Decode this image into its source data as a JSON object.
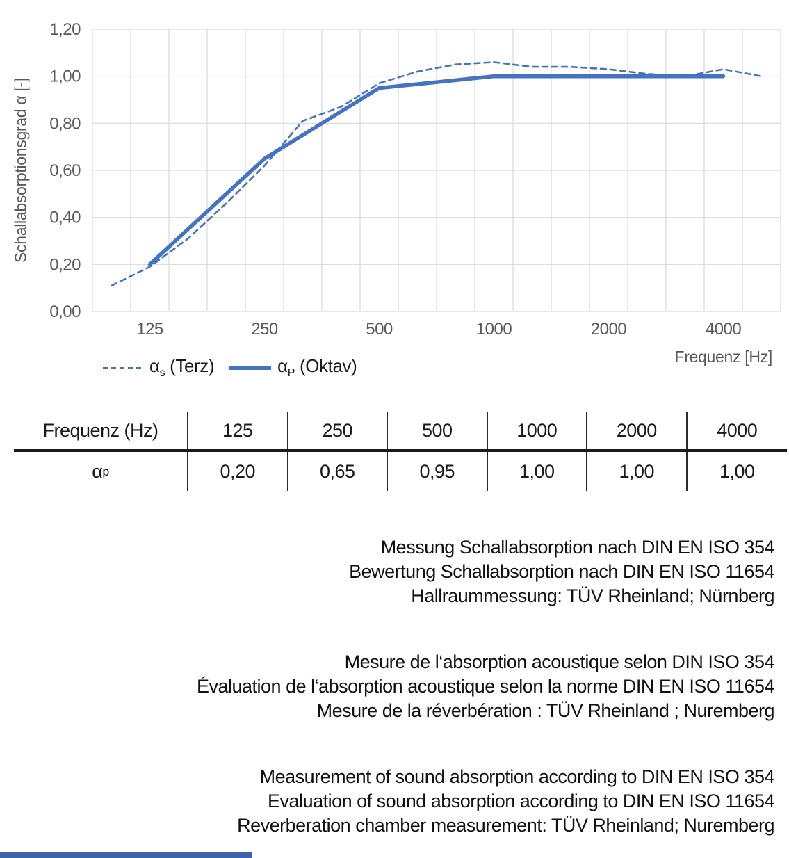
{
  "chart": {
    "y_axis": {
      "title": "Schallabsorptionsgrad α [-]",
      "tick_labels": [
        "0,00",
        "0,20",
        "0,40",
        "0,60",
        "0,80",
        "1,00",
        "1,20"
      ],
      "step": 0.2
    },
    "x_axis": {
      "title": "Frequenz [Hz]",
      "tick_labels": [
        "125",
        "250",
        "500",
        "1000",
        "2000",
        "4000"
      ]
    },
    "legend": [
      {
        "symbol": "α",
        "sub": "s",
        "text": " (Terz)"
      },
      {
        "symbol": "α",
        "sub": "P",
        "text": " (Oktav)"
      }
    ],
    "colors": {
      "line": "#4472C4",
      "grid": "#D9D9D9",
      "tick_text": "#595959"
    }
  },
  "chart_data": {
    "type": "line",
    "x_scale": "log-category-third-octave",
    "categories": [
      100,
      125,
      160,
      200,
      250,
      315,
      400,
      500,
      630,
      800,
      1000,
      1250,
      1600,
      2000,
      2500,
      3150,
      4000,
      5000
    ],
    "series": [
      {
        "name": "αs (Terz)",
        "style": "dashed",
        "values": [
          0.11,
          0.19,
          0.31,
          0.46,
          0.62,
          0.81,
          0.87,
          0.97,
          1.02,
          1.05,
          1.06,
          1.04,
          1.04,
          1.03,
          1.01,
          1.0,
          1.03,
          1.0
        ]
      },
      {
        "name": "αP (Oktav)",
        "style": "solid",
        "x": [
          125,
          250,
          500,
          1000,
          2000,
          4000
        ],
        "values": [
          0.2,
          0.65,
          0.95,
          1.0,
          1.0,
          1.0
        ]
      }
    ],
    "ylim": [
      0,
      1.2
    ],
    "grid": true,
    "legend_position": "bottom-left",
    "title": "",
    "xlabel": "Frequenz [Hz]",
    "ylabel": "Schallabsorptionsgrad α [-]"
  },
  "table": {
    "header": {
      "label": "Frequenz (Hz)",
      "cols": [
        "125",
        "250",
        "500",
        "1000",
        "2000",
        "4000"
      ]
    },
    "row": {
      "symbol": "α",
      "sub": "p",
      "values": [
        "0,20",
        "0,65",
        "0,95",
        "1,00",
        "1,00",
        "1,00"
      ]
    }
  },
  "notes": {
    "german": [
      "Messung Schallabsorption nach DIN EN ISO 354",
      "Bewertung Schallabsorption nach DIN EN ISO 11654",
      "Hallraummessung: TÜV Rheinland; Nürnberg"
    ],
    "french": [
      "Mesure de l‘absorption acoustique selon DIN ISO 354",
      "Évaluation de l‘absorption acoustique selon la norme DIN EN ISO 11654",
      "Mesure de la réverbération : TÜV Rheinland ; Nuremberg"
    ],
    "english": [
      "Measurement of sound absorption according to DIN EN ISO 354",
      "Evaluation of sound absorption according to DIN EN ISO 11654",
      "Reverberation chamber measurement: TÜV Rheinland; Nuremberg"
    ]
  },
  "footer": {
    "accent_color": "#3d63ad"
  }
}
